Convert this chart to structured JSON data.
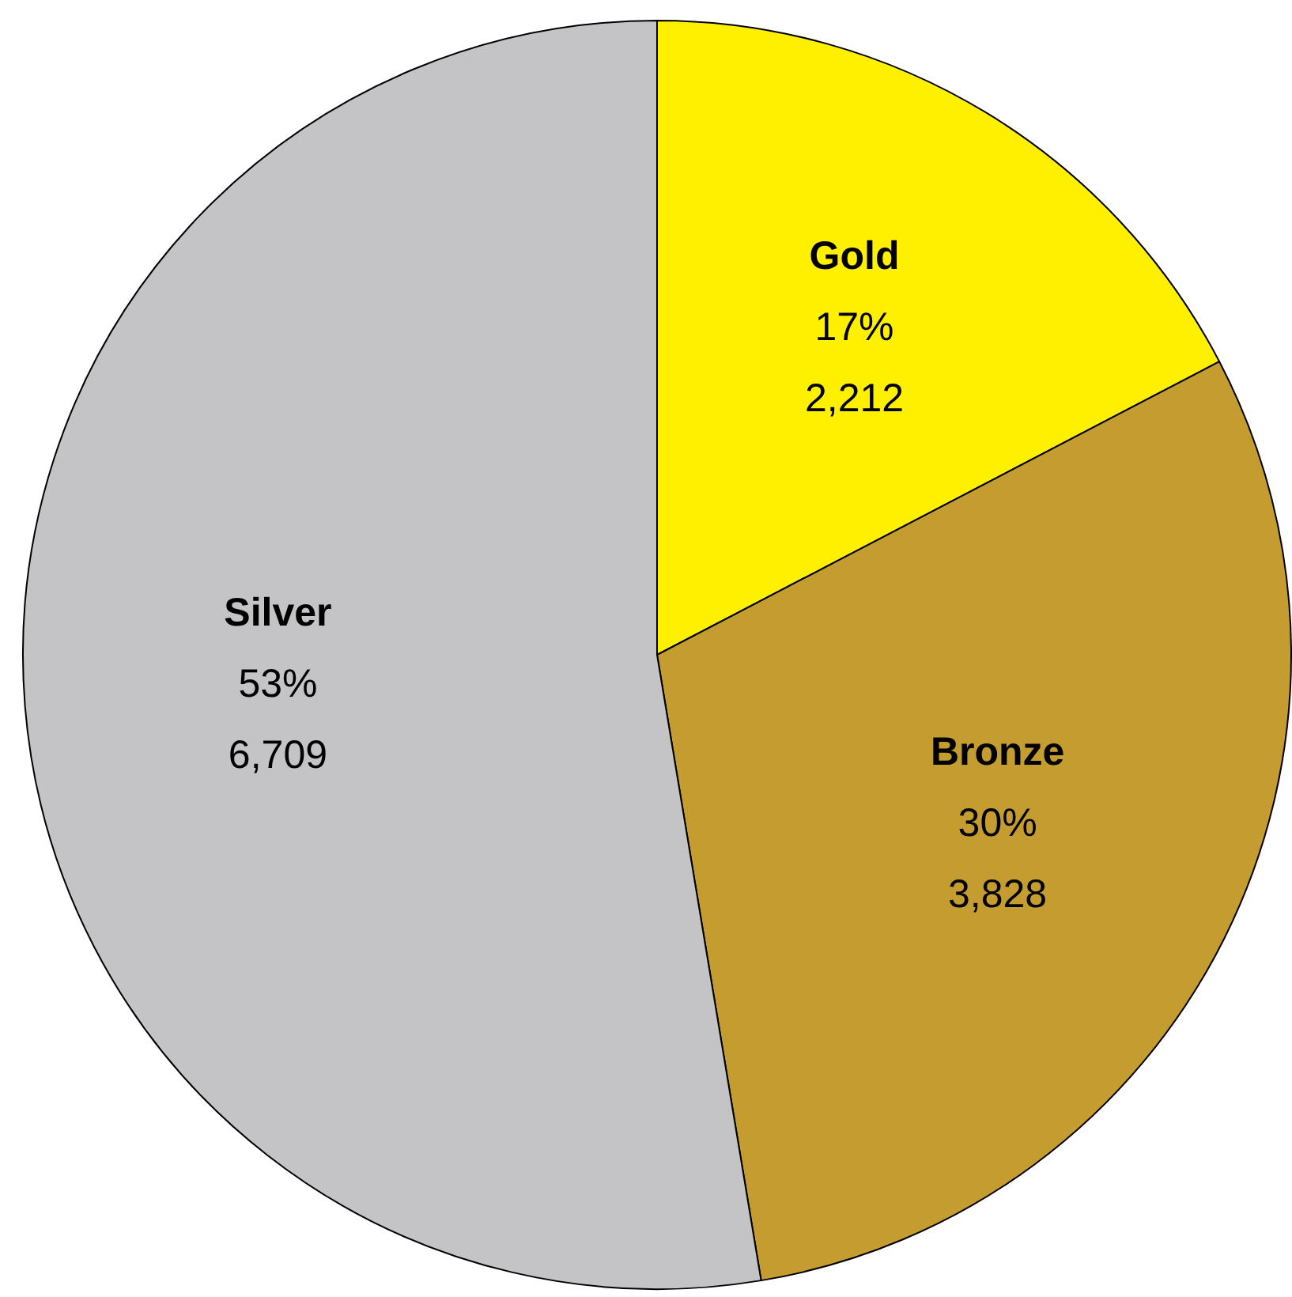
{
  "chart_data": {
    "type": "pie",
    "categories": [
      "Gold",
      "Bronze",
      "Silver"
    ],
    "values": [
      2212,
      3828,
      6709
    ],
    "colors": [
      "#fff000",
      "#c49c30",
      "#c4c4c6"
    ],
    "value_labels": [
      "17%\n2,212",
      "30%\n3,828",
      "53%\n6,709"
    ],
    "legend": false
  }
}
